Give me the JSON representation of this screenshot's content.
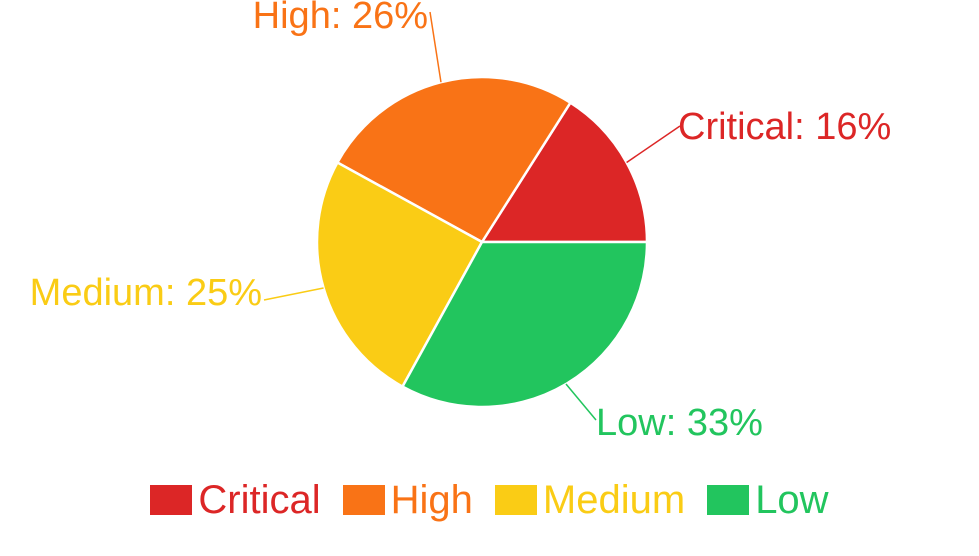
{
  "chart_data": {
    "type": "pie",
    "title": "",
    "slices": [
      {
        "name": "Critical",
        "value": 16,
        "label": "Critical: 16%",
        "color": "#dc2626"
      },
      {
        "name": "High",
        "value": 26,
        "label": "High: 26%",
        "color": "#f97316"
      },
      {
        "name": "Medium",
        "value": 25,
        "label": "Medium: 25%",
        "color": "#facc15"
      },
      {
        "name": "Low",
        "value": 33,
        "label": "Low: 33%",
        "color": "#22c55e"
      }
    ],
    "legend_position": "bottom"
  }
}
